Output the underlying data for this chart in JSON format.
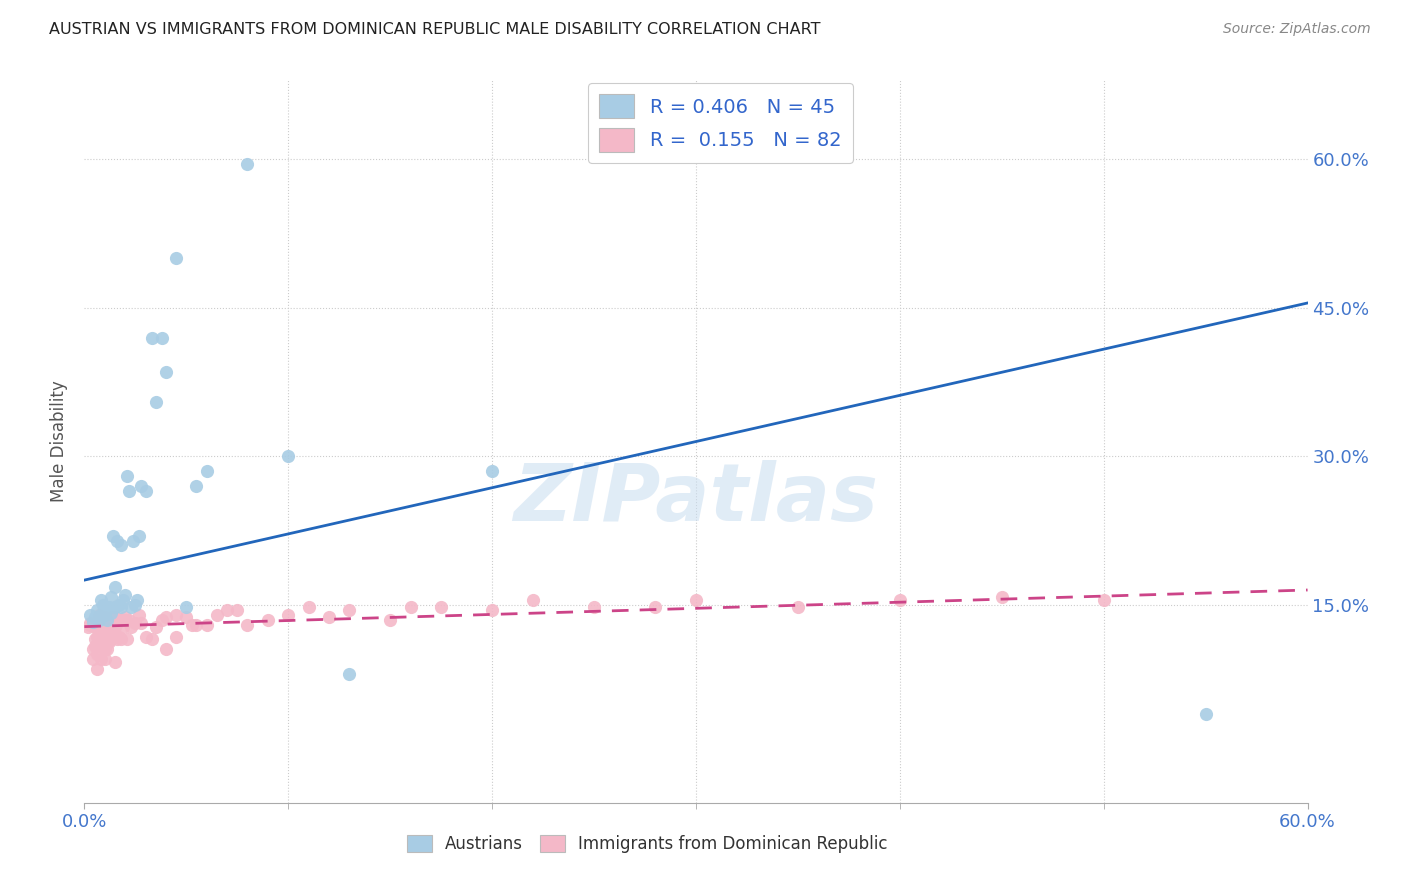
{
  "title": "AUSTRIAN VS IMMIGRANTS FROM DOMINICAN REPUBLIC MALE DISABILITY CORRELATION CHART",
  "source": "Source: ZipAtlas.com",
  "ylabel": "Male Disability",
  "ytick_labels": [
    "15.0%",
    "30.0%",
    "45.0%",
    "60.0%"
  ],
  "ytick_values": [
    0.15,
    0.3,
    0.45,
    0.6
  ],
  "xlim": [
    0.0,
    0.6
  ],
  "ylim": [
    -0.05,
    0.68
  ],
  "blue_color": "#a8cce4",
  "pink_color": "#f4b8c8",
  "blue_line_color": "#2266bb",
  "pink_line_color": "#cc4488",
  "watermark": "ZIPatlas",
  "austrians_x": [
    0.003,
    0.004,
    0.005,
    0.006,
    0.007,
    0.008,
    0.008,
    0.009,
    0.01,
    0.01,
    0.011,
    0.012,
    0.013,
    0.013,
    0.014,
    0.015,
    0.015,
    0.016,
    0.017,
    0.018,
    0.018,
    0.019,
    0.02,
    0.021,
    0.022,
    0.023,
    0.024,
    0.025,
    0.026,
    0.027,
    0.028,
    0.03,
    0.033,
    0.035,
    0.038,
    0.04,
    0.045,
    0.05,
    0.055,
    0.06,
    0.08,
    0.1,
    0.13,
    0.2,
    0.55
  ],
  "austrians_y": [
    0.14,
    0.133,
    0.138,
    0.145,
    0.135,
    0.14,
    0.155,
    0.15,
    0.14,
    0.148,
    0.135,
    0.148,
    0.142,
    0.158,
    0.22,
    0.148,
    0.168,
    0.215,
    0.15,
    0.148,
    0.21,
    0.155,
    0.16,
    0.28,
    0.265,
    0.148,
    0.215,
    0.15,
    0.155,
    0.22,
    0.27,
    0.265,
    0.42,
    0.355,
    0.42,
    0.385,
    0.5,
    0.148,
    0.27,
    0.285,
    0.595,
    0.3,
    0.08,
    0.285,
    0.04
  ],
  "dr_x": [
    0.002,
    0.003,
    0.003,
    0.004,
    0.004,
    0.005,
    0.005,
    0.005,
    0.006,
    0.006,
    0.006,
    0.007,
    0.007,
    0.007,
    0.008,
    0.008,
    0.008,
    0.009,
    0.009,
    0.01,
    0.01,
    0.01,
    0.01,
    0.01,
    0.011,
    0.011,
    0.012,
    0.012,
    0.013,
    0.013,
    0.014,
    0.014,
    0.015,
    0.015,
    0.015,
    0.016,
    0.016,
    0.017,
    0.018,
    0.018,
    0.019,
    0.02,
    0.02,
    0.021,
    0.022,
    0.023,
    0.025,
    0.027,
    0.028,
    0.03,
    0.033,
    0.035,
    0.038,
    0.04,
    0.04,
    0.045,
    0.045,
    0.05,
    0.053,
    0.055,
    0.06,
    0.065,
    0.07,
    0.075,
    0.08,
    0.09,
    0.1,
    0.11,
    0.12,
    0.13,
    0.15,
    0.16,
    0.175,
    0.2,
    0.22,
    0.25,
    0.28,
    0.3,
    0.35,
    0.4,
    0.45,
    0.5
  ],
  "dr_y": [
    0.128,
    0.13,
    0.132,
    0.095,
    0.105,
    0.108,
    0.115,
    0.128,
    0.085,
    0.1,
    0.118,
    0.125,
    0.132,
    0.14,
    0.095,
    0.108,
    0.12,
    0.112,
    0.128,
    0.095,
    0.105,
    0.118,
    0.13,
    0.138,
    0.105,
    0.12,
    0.112,
    0.132,
    0.115,
    0.138,
    0.125,
    0.138,
    0.092,
    0.128,
    0.138,
    0.115,
    0.132,
    0.118,
    0.115,
    0.135,
    0.128,
    0.135,
    0.138,
    0.115,
    0.135,
    0.128,
    0.132,
    0.14,
    0.132,
    0.118,
    0.115,
    0.128,
    0.135,
    0.105,
    0.138,
    0.118,
    0.14,
    0.138,
    0.13,
    0.13,
    0.13,
    0.14,
    0.145,
    0.145,
    0.13,
    0.135,
    0.14,
    0.148,
    0.138,
    0.145,
    0.135,
    0.148,
    0.148,
    0.145,
    0.155,
    0.148,
    0.148,
    0.155,
    0.148,
    0.155,
    0.158,
    0.155
  ],
  "blue_line_x0": 0.0,
  "blue_line_y0": 0.175,
  "blue_line_x1": 0.6,
  "blue_line_y1": 0.455,
  "pink_line_x0": 0.0,
  "pink_line_y0": 0.128,
  "pink_line_x1": 0.6,
  "pink_line_y1": 0.165
}
